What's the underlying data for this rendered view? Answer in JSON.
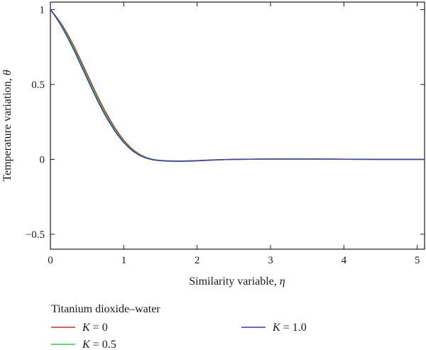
{
  "chart_data": {
    "type": "line",
    "title": "",
    "xlabel_text": "Similarity variable, ",
    "xlabel_symbol": "η",
    "ylabel_text": "Temperature variation, ",
    "ylabel_symbol": "θ",
    "xlim": [
      0,
      5.1
    ],
    "ylim": [
      -0.6,
      1.05
    ],
    "x_ticks": [
      0,
      1,
      2,
      3,
      4,
      5
    ],
    "x_tick_labels": [
      "0",
      "1",
      "2",
      "3",
      "4",
      "5"
    ],
    "y_ticks": [
      -0.5,
      0,
      0.5,
      1
    ],
    "y_tick_labels": [
      "−0.5",
      "0",
      "0.5",
      "1"
    ],
    "grid": false,
    "legend": {
      "title": "Titanium dioxide–water",
      "placement": "below-plot",
      "param_symbol": "K",
      "entries": [
        {
          "label": "K = 0",
          "value_text": " = 0",
          "color": "#c0302c"
        },
        {
          "label": "K = 0.5",
          "value_text": " = 0.5",
          "color": "#34c24a"
        },
        {
          "label": "K = 1.0",
          "value_text": " = 1.0",
          "color": "#3a3fa8"
        }
      ]
    },
    "x": [
      0,
      0.1,
      0.2,
      0.3,
      0.4,
      0.5,
      0.6,
      0.7,
      0.8,
      0.9,
      1.0,
      1.1,
      1.2,
      1.3,
      1.4,
      1.5,
      1.6,
      1.8,
      2.0,
      2.2,
      2.5,
      3.0,
      3.5,
      4.0,
      4.5,
      5.0,
      5.1
    ],
    "series": [
      {
        "name": "K = 0",
        "color": "#c0302c",
        "values": [
          1.0,
          0.94,
          0.865,
          0.775,
          0.675,
          0.57,
          0.465,
          0.365,
          0.275,
          0.195,
          0.128,
          0.076,
          0.039,
          0.014,
          0.0,
          -0.007,
          -0.01,
          -0.011,
          -0.008,
          -0.004,
          0.0,
          0.002,
          0.002,
          0.001,
          0.0,
          0.0,
          0.0
        ]
      },
      {
        "name": "K = 0.5",
        "color": "#34c24a",
        "values": [
          1.0,
          0.935,
          0.855,
          0.762,
          0.66,
          0.555,
          0.45,
          0.35,
          0.262,
          0.184,
          0.12,
          0.07,
          0.035,
          0.012,
          -0.001,
          -0.008,
          -0.011,
          -0.012,
          -0.009,
          -0.005,
          0.0,
          0.002,
          0.002,
          0.001,
          0.0,
          0.0,
          0.0
        ]
      },
      {
        "name": "K = 1.0",
        "color": "#3a3fa8",
        "values": [
          1.0,
          0.93,
          0.845,
          0.75,
          0.645,
          0.54,
          0.435,
          0.337,
          0.25,
          0.175,
          0.113,
          0.065,
          0.031,
          0.009,
          -0.003,
          -0.009,
          -0.012,
          -0.013,
          -0.01,
          -0.005,
          0.0,
          0.002,
          0.002,
          0.001,
          0.0,
          0.0,
          0.0
        ]
      }
    ]
  }
}
